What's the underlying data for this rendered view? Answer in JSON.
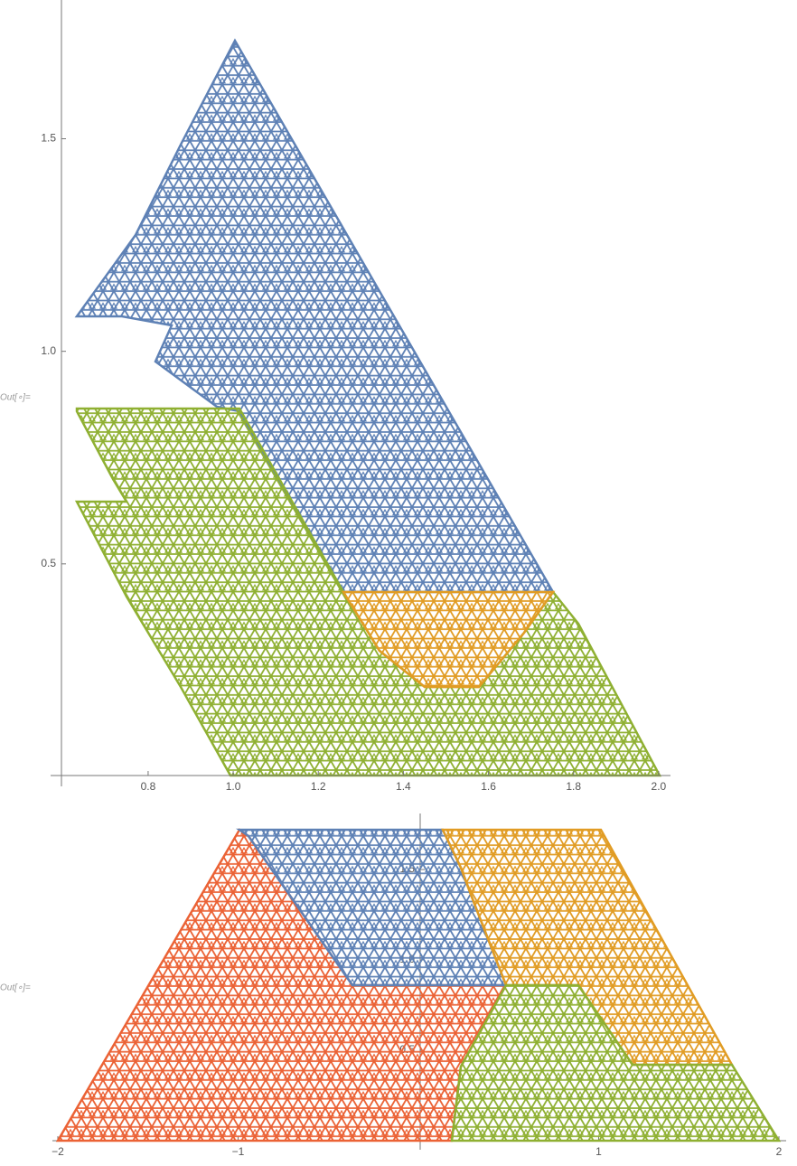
{
  "cells": [
    {
      "label": "Out[∘]=",
      "plot": {
        "xlim": [
          0.575,
          2.03
        ],
        "ylim": [
          0,
          1.82
        ],
        "xticks": [
          0.8,
          {
            "value": 1,
            "label": "1.0"
          },
          1.2,
          1.4,
          1.6,
          1.8,
          {
            "value": 2,
            "label": "2.0"
          }
        ],
        "yticks": [
          0.5,
          {
            "value": 1,
            "label": "1.0"
          },
          1.5
        ],
        "colors": [
          "#5e81b5",
          "#8fb032",
          "#e19c24"
        ]
      }
    },
    {
      "label": "Out[∘]=",
      "plot": {
        "xlim": [
          -2.02,
          2.03
        ],
        "ylim": [
          0,
          1.8
        ],
        "xticks": [
          {
            "value": -2,
            "label": "−2"
          },
          {
            "value": -1,
            "label": "−1"
          },
          1,
          2
        ],
        "yticks": [
          0.5,
          {
            "value": 1,
            "label": "1.0"
          },
          1.5
        ],
        "colors": [
          "#eb6235",
          "#5e81b5",
          "#e19c24",
          "#8fb032"
        ]
      }
    }
  ]
}
